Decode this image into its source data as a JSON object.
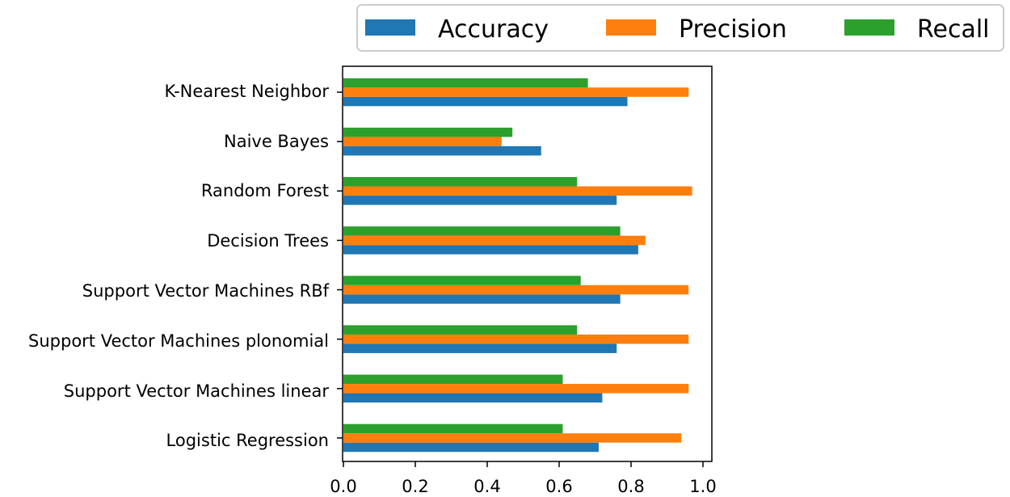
{
  "chart_data": {
    "type": "bar",
    "orientation": "horizontal",
    "title": "",
    "xlabel": "",
    "ylabel": "",
    "xlim": [
      0,
      1.0
    ],
    "grid": false,
    "legend_position": "top-right",
    "categories": [
      "Logistic Regression",
      "Support Vector Machines linear",
      "Support Vector Machines plonomial",
      "Support Vector Machines RBf",
      "Decision Trees",
      "Random Forest",
      "Naive Bayes",
      "K-Nearest Neighbor"
    ],
    "series": [
      {
        "name": "Accuracy",
        "color": "#1f77b4",
        "values": [
          0.71,
          0.72,
          0.76,
          0.77,
          0.82,
          0.76,
          0.55,
          0.79
        ]
      },
      {
        "name": "Precision",
        "color": "#ff7f0e",
        "values": [
          0.94,
          0.96,
          0.96,
          0.96,
          0.84,
          0.97,
          0.44,
          0.96
        ]
      },
      {
        "name": "Recall",
        "color": "#2ca02c",
        "values": [
          0.61,
          0.61,
          0.65,
          0.66,
          0.77,
          0.65,
          0.47,
          0.68
        ]
      }
    ],
    "xticks": [
      "0.0",
      "0.2",
      "0.4",
      "0.6",
      "0.8",
      "1.0"
    ]
  }
}
